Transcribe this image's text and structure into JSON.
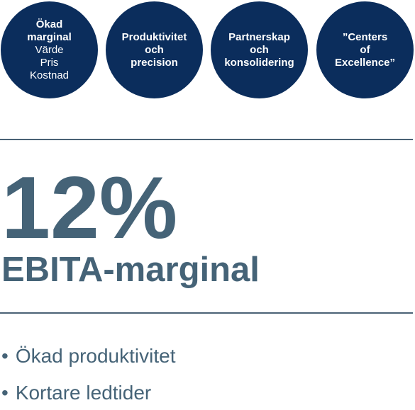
{
  "circles": [
    {
      "bold_lines": [
        "Ökad",
        "marginal"
      ],
      "regular_lines": [
        "Värde",
        "Pris",
        "Kostnad"
      ]
    },
    {
      "bold_lines": [
        "Produktivitet",
        "och",
        "precision"
      ],
      "regular_lines": []
    },
    {
      "bold_lines": [
        "Partnerskap",
        "och",
        "konsolidering"
      ],
      "regular_lines": []
    },
    {
      "bold_lines": [
        "”Centers",
        "of",
        "Excellence”"
      ],
      "regular_lines": []
    }
  ],
  "metric": {
    "value": "12%",
    "label": "EBITA-marginal"
  },
  "bullets": [
    {
      "marker": "•",
      "text": "Ökad produktivitet"
    },
    {
      "marker": "•",
      "text": "Kortare ledtider"
    }
  ],
  "colors": {
    "circle_fill": "#0b2d5c",
    "text_accent": "#456377",
    "rule": "#4a6275"
  }
}
